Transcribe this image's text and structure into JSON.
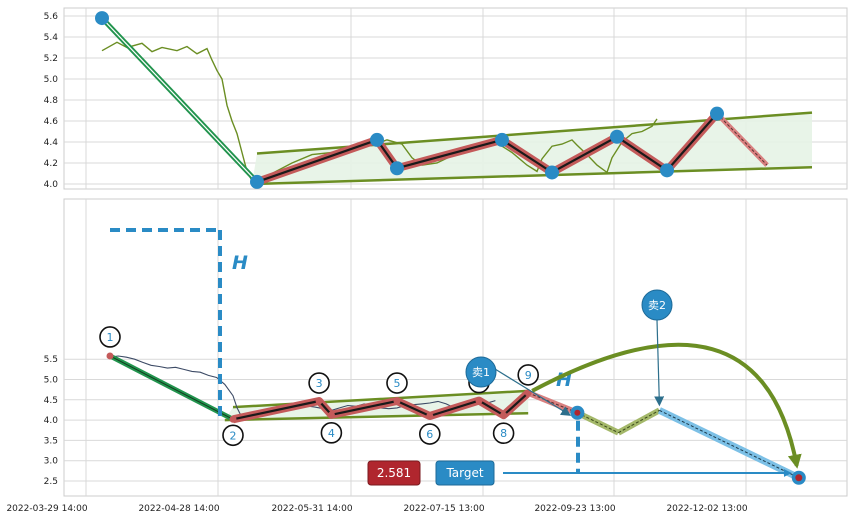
{
  "chart_data": [
    {
      "type": "line",
      "panel": "overview",
      "ylim": [
        3.96,
        5.68
      ],
      "yticks": [
        "4.0",
        "4.2",
        "4.4",
        "4.6",
        "4.8",
        "5.0",
        "5.2",
        "5.4",
        "5.6"
      ],
      "price_series": [
        [
          0,
          5.27
        ],
        [
          3,
          5.35
        ],
        [
          5,
          5.3
        ],
        [
          8,
          5.34
        ],
        [
          10,
          5.26
        ],
        [
          12,
          5.3
        ],
        [
          15,
          5.27
        ],
        [
          17,
          5.31
        ],
        [
          19,
          5.24
        ],
        [
          21,
          5.29
        ],
        [
          22,
          5.18
        ],
        [
          23,
          5.08
        ],
        [
          24,
          5.0
        ],
        [
          25,
          4.75
        ],
        [
          26,
          4.6
        ],
        [
          27,
          4.48
        ],
        [
          28,
          4.3
        ],
        [
          29,
          4.12
        ],
        [
          30,
          4.03
        ],
        [
          34,
          4.1
        ],
        [
          38,
          4.2
        ],
        [
          42,
          4.28
        ],
        [
          46,
          4.3
        ],
        [
          50,
          4.35
        ],
        [
          54,
          4.37
        ],
        [
          57,
          4.42
        ],
        [
          60,
          4.38
        ],
        [
          62,
          4.25
        ],
        [
          64,
          4.18
        ],
        [
          67,
          4.2
        ],
        [
          70,
          4.27
        ],
        [
          73,
          4.35
        ],
        [
          76,
          4.38
        ],
        [
          78,
          4.4
        ],
        [
          80,
          4.36
        ],
        [
          82,
          4.3
        ],
        [
          85,
          4.18
        ],
        [
          87,
          4.12
        ],
        [
          88,
          4.24
        ],
        [
          90,
          4.36
        ],
        [
          92,
          4.38
        ],
        [
          94,
          4.42
        ],
        [
          95,
          4.37
        ],
        [
          97,
          4.28
        ],
        [
          99,
          4.18
        ],
        [
          101,
          4.11
        ],
        [
          102,
          4.25
        ],
        [
          104,
          4.4
        ],
        [
          106,
          4.48
        ],
        [
          108,
          4.5
        ],
        [
          110,
          4.55
        ],
        [
          111,
          4.62
        ]
      ],
      "channel": {
        "upper": [
          [
            31,
            4.29
          ],
          [
            142,
            4.68
          ]
        ],
        "lower": [
          [
            30,
            4.0
          ],
          [
            142,
            4.16
          ]
        ]
      },
      "projection": [
        [
          123,
          4.67
        ],
        [
          133,
          4.18
        ]
      ],
      "entry_line": [
        [
          0,
          5.58
        ],
        [
          31,
          4.02
        ]
      ],
      "pivots": [
        [
          0,
          5.58
        ],
        [
          31,
          4.02
        ],
        [
          55,
          4.42
        ],
        [
          59,
          4.15
        ],
        [
          80,
          4.42
        ],
        [
          90,
          4.11
        ],
        [
          103,
          4.45
        ],
        [
          113,
          4.13
        ],
        [
          123,
          4.67
        ]
      ]
    },
    {
      "type": "line",
      "panel": "detail",
      "ylim": [
        2.4,
        5.9
      ],
      "yticks": [
        "2.5",
        "3.0",
        "3.5",
        "4.0",
        "4.5",
        "5.0",
        "5.5"
      ],
      "x_tick_labels": [
        "2022-03-29 14:00",
        "2022-04-28 14:00",
        "2022-05-31 14:00",
        "2022-07-15 13:00",
        "2022-09-23 13:00",
        "2022-12-02 13:00"
      ],
      "price_series": [
        [
          0,
          5.55
        ],
        [
          2,
          5.58
        ],
        [
          4,
          5.55
        ],
        [
          6,
          5.5
        ],
        [
          8,
          5.42
        ],
        [
          10,
          5.35
        ],
        [
          12,
          5.32
        ],
        [
          14,
          5.28
        ],
        [
          16,
          5.3
        ],
        [
          18,
          5.25
        ],
        [
          20,
          5.2
        ],
        [
          22,
          5.18
        ],
        [
          24,
          5.1
        ],
        [
          26,
          5.05
        ],
        [
          28,
          4.88
        ],
        [
          30,
          4.6
        ],
        [
          31,
          4.3
        ],
        [
          32,
          4.1
        ],
        [
          34,
          4.05
        ],
        [
          36,
          4.12
        ],
        [
          38,
          4.18
        ],
        [
          40,
          4.2
        ],
        [
          42,
          4.25
        ],
        [
          44,
          4.28
        ],
        [
          46,
          4.3
        ],
        [
          48,
          4.35
        ],
        [
          50,
          4.32
        ],
        [
          52,
          4.28
        ],
        [
          54,
          4.24
        ],
        [
          56,
          4.3
        ],
        [
          58,
          4.36
        ],
        [
          60,
          4.34
        ],
        [
          62,
          4.4
        ],
        [
          64,
          4.36
        ],
        [
          66,
          4.3
        ],
        [
          68,
          4.28
        ],
        [
          70,
          4.3
        ],
        [
          72,
          4.36
        ],
        [
          74,
          4.38
        ],
        [
          76,
          4.4
        ],
        [
          78,
          4.42
        ],
        [
          80,
          4.46
        ],
        [
          82,
          4.4
        ],
        [
          84,
          4.3
        ],
        [
          86,
          4.38
        ],
        [
          88,
          4.46
        ],
        [
          90,
          4.5
        ],
        [
          92,
          4.42
        ],
        [
          94,
          4.48
        ]
      ],
      "channel": {
        "upper": [
          [
            30,
            4.32
          ],
          [
            102,
            4.72
          ]
        ],
        "lower": [
          [
            28,
            4.0
          ],
          [
            102,
            4.17
          ]
        ]
      },
      "wave_points": [
        {
          "label": "1",
          "x": 0,
          "y": 5.58
        },
        {
          "label": "2",
          "x": 30,
          "y": 4.02
        },
        {
          "label": "3",
          "x": 51,
          "y": 4.47
        },
        {
          "label": "4",
          "x": 54,
          "y": 4.13
        },
        {
          "label": "5",
          "x": 70,
          "y": 4.47
        },
        {
          "label": "6",
          "x": 78,
          "y": 4.1
        },
        {
          "label": "7",
          "x": 90,
          "y": 4.48
        },
        {
          "label": "8",
          "x": 96,
          "y": 4.12
        },
        {
          "label": "9",
          "x": 102,
          "y": 4.67
        }
      ],
      "projection": [
        [
          102,
          4.67
        ],
        [
          114,
          4.18
        ],
        [
          124,
          3.69
        ],
        [
          134,
          4.24
        ],
        [
          168,
          2.58
        ]
      ],
      "sell_points": [
        {
          "label": "卖1",
          "x": 114,
          "y": 4.18
        },
        {
          "label": "卖2",
          "x": 134,
          "y": 4.24
        }
      ],
      "height_label": "H",
      "target_value": "2.581",
      "target_label": "Target",
      "target_point": [
        168,
        2.58
      ]
    }
  ],
  "colors": {
    "price_top": "#6b8e23",
    "price_bottom": "#3d4b66",
    "channel": "#6b8e23",
    "channel_fill": "#e6f3e6",
    "zigzag_outer": "#c45a5a",
    "zigzag_inner": "#1a1a1a",
    "entry_line": "#22944e",
    "accent_blue": "#2a8bc5",
    "target_box": "#b0262e"
  }
}
